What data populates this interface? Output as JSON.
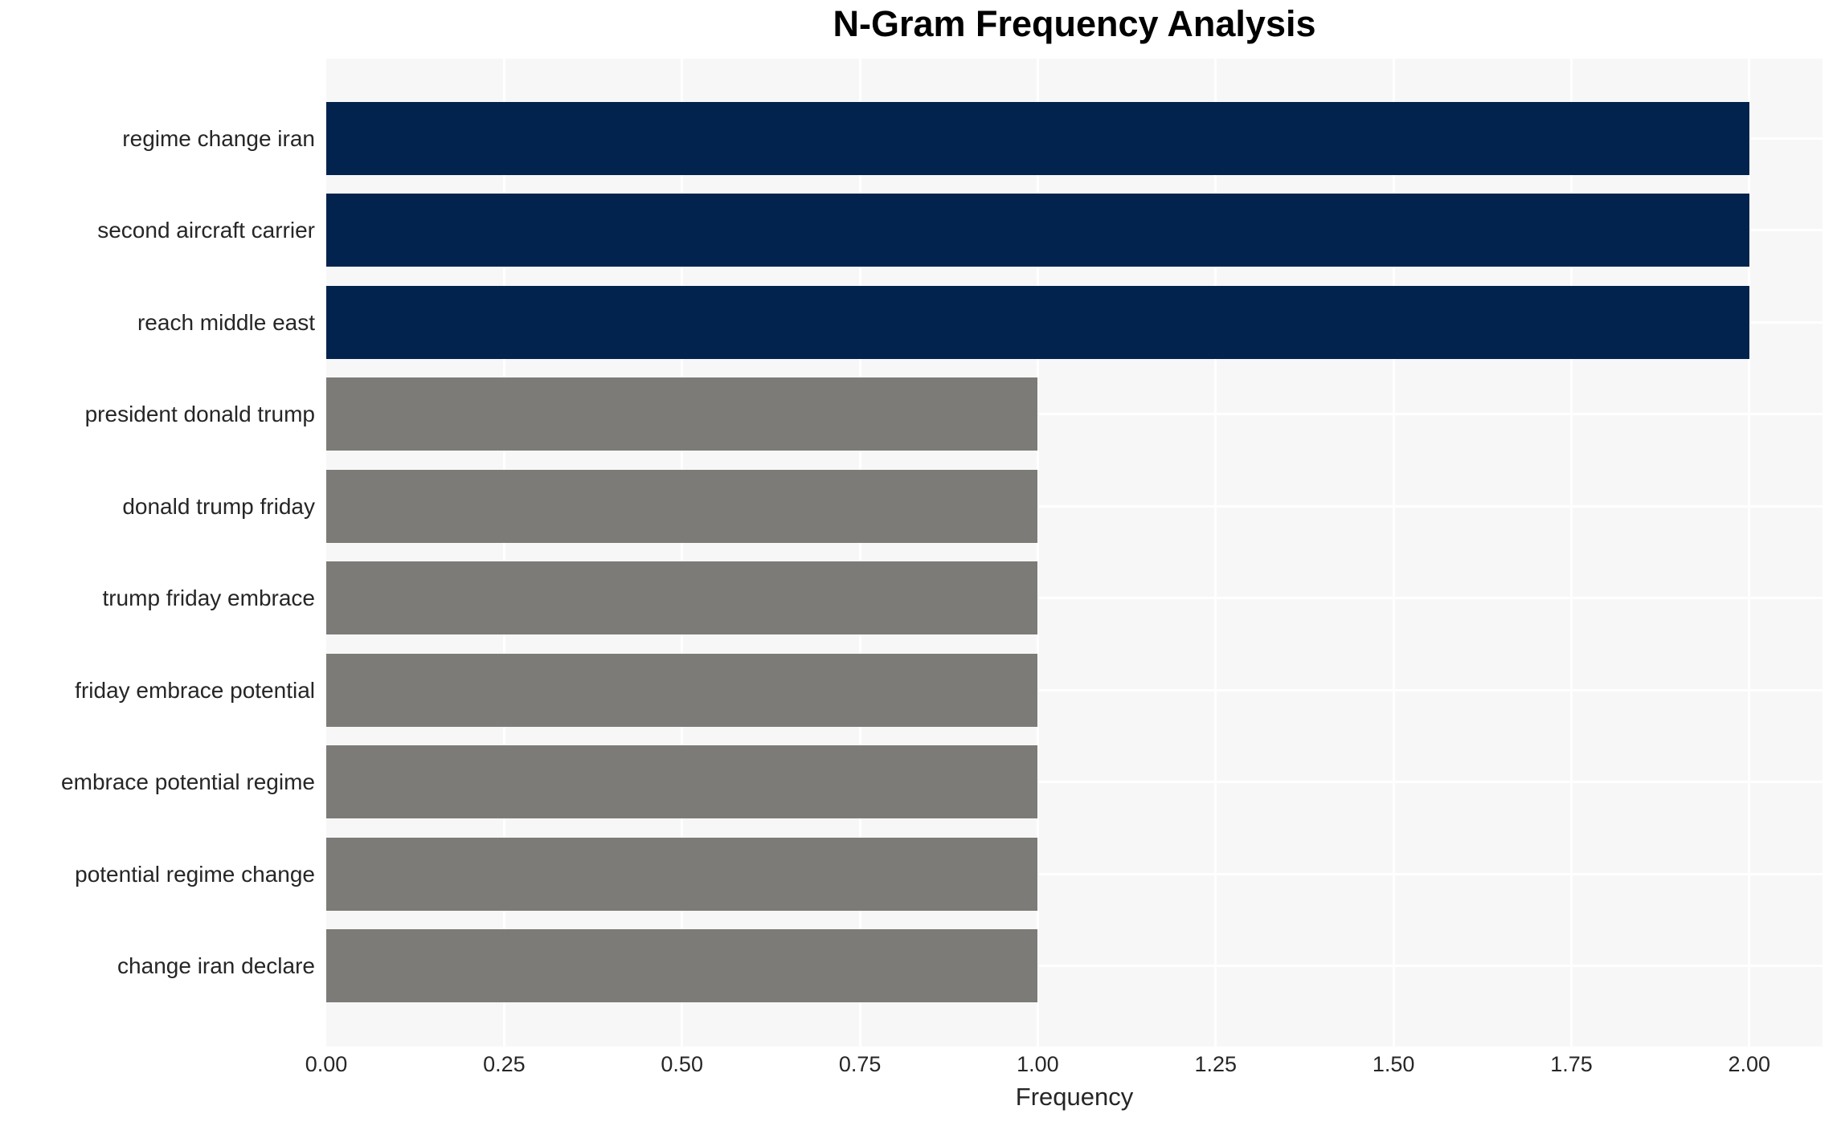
{
  "title": "N-Gram Frequency Analysis",
  "chart_data": {
    "type": "bar",
    "orientation": "horizontal",
    "title": "N-Gram Frequency Analysis",
    "xlabel": "Frequency",
    "ylabel": "",
    "categories": [
      "regime change iran",
      "second aircraft carrier",
      "reach middle east",
      "president donald trump",
      "donald trump friday",
      "trump friday embrace",
      "friday embrace potential",
      "embrace potential regime",
      "potential regime change",
      "change iran declare"
    ],
    "values": [
      2,
      2,
      2,
      1,
      1,
      1,
      1,
      1,
      1,
      1
    ],
    "bar_colors": [
      "#02234d",
      "#02234d",
      "#02234d",
      "#7c7b77",
      "#7c7b77",
      "#7c7b77",
      "#7c7b77",
      "#7c7b77",
      "#7c7b77",
      "#7c7b77"
    ],
    "x_ticks": [
      0,
      0.25,
      0.5,
      0.75,
      1.0,
      1.25,
      1.5,
      1.75,
      2.0
    ],
    "x_tick_labels": [
      "0.00",
      "0.25",
      "0.50",
      "0.75",
      "1.00",
      "1.25",
      "1.50",
      "1.75",
      "2.00"
    ],
    "xlim": [
      0,
      2.103
    ],
    "grid": true,
    "legend": false,
    "plot_background": "#f7f7f7",
    "grid_color": "#ffffff",
    "text_color": "#262626"
  }
}
